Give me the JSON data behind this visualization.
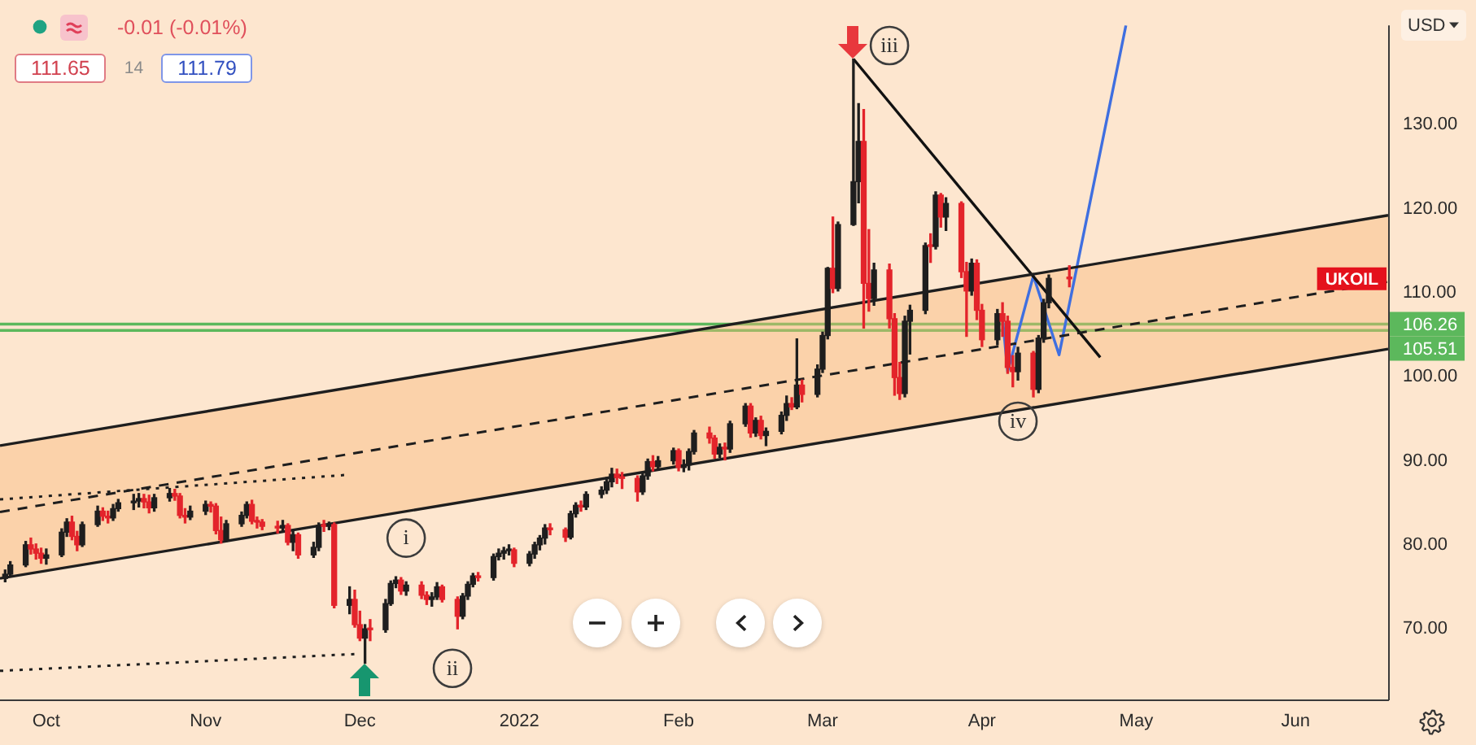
{
  "chart_data": {
    "type": "candlestick",
    "ylabel": "USD",
    "x": [
      "2021-09-23",
      "2021-09-24",
      "2021-09-27",
      "2021-09-28",
      "2021-09-29",
      "2021-09-30",
      "2021-10-01",
      "2021-10-04",
      "2021-10-05",
      "2021-10-06",
      "2021-10-07",
      "2021-10-08",
      "2021-10-11",
      "2021-10-12",
      "2021-10-13",
      "2021-10-14",
      "2021-10-15",
      "2021-10-18",
      "2021-10-19",
      "2021-10-20",
      "2021-10-21",
      "2021-10-22",
      "2021-10-25",
      "2021-10-26",
      "2021-10-27",
      "2021-10-28",
      "2021-10-29",
      "2021-11-01",
      "2021-11-02",
      "2021-11-03",
      "2021-11-04",
      "2021-11-05",
      "2021-11-08",
      "2021-11-09",
      "2021-11-10",
      "2021-11-11",
      "2021-11-12",
      "2021-11-15",
      "2021-11-16",
      "2021-11-17",
      "2021-11-18",
      "2021-11-19",
      "2021-11-22",
      "2021-11-23",
      "2021-11-24",
      "2021-11-25",
      "2021-11-26",
      "2021-11-29",
      "2021-11-30",
      "2021-12-01",
      "2021-12-02",
      "2021-12-03",
      "2021-12-06",
      "2021-12-07",
      "2021-12-08",
      "2021-12-09",
      "2021-12-10",
      "2021-12-13",
      "2021-12-14",
      "2021-12-15",
      "2021-12-16",
      "2021-12-17",
      "2021-12-20",
      "2021-12-21",
      "2021-12-22",
      "2021-12-23",
      "2021-12-24",
      "2021-12-27",
      "2021-12-28",
      "2021-12-29",
      "2021-12-30",
      "2021-12-31",
      "2022-01-03",
      "2022-01-04",
      "2022-01-05",
      "2022-01-06",
      "2022-01-07",
      "2022-01-10",
      "2022-01-11",
      "2022-01-12",
      "2022-01-13",
      "2022-01-14",
      "2022-01-17",
      "2022-01-18",
      "2022-01-19",
      "2022-01-20",
      "2022-01-21",
      "2022-01-24",
      "2022-01-25",
      "2022-01-26",
      "2022-01-27",
      "2022-01-28",
      "2022-01-31",
      "2022-02-01",
      "2022-02-02",
      "2022-02-03",
      "2022-02-04",
      "2022-02-07",
      "2022-02-08",
      "2022-02-09",
      "2022-02-10",
      "2022-02-11",
      "2022-02-14",
      "2022-02-15",
      "2022-02-16",
      "2022-02-17",
      "2022-02-18",
      "2022-02-21",
      "2022-02-22",
      "2022-02-23",
      "2022-02-24",
      "2022-02-25",
      "2022-02-28",
      "2022-03-01",
      "2022-03-02",
      "2022-03-03",
      "2022-03-04",
      "2022-03-07",
      "2022-03-08",
      "2022-03-09",
      "2022-03-10",
      "2022-03-11",
      "2022-03-14",
      "2022-03-15",
      "2022-03-16",
      "2022-03-17",
      "2022-03-18",
      "2022-03-21",
      "2022-03-22",
      "2022-03-23",
      "2022-03-24",
      "2022-03-25",
      "2022-03-28",
      "2022-03-29",
      "2022-03-30",
      "2022-03-31",
      "2022-04-01",
      "2022-04-04",
      "2022-04-05",
      "2022-04-06",
      "2022-04-07",
      "2022-04-08",
      "2022-04-11",
      "2022-04-12",
      "2022-04-13",
      "2022-04-14",
      "2022-04-18"
    ],
    "ohlc": [
      [
        76.0,
        77.0,
        75.6,
        76.5
      ],
      [
        76.5,
        78.0,
        76.2,
        77.6
      ],
      [
        77.6,
        80.4,
        77.4,
        80.0
      ],
      [
        80.0,
        80.8,
        78.9,
        79.5
      ],
      [
        79.5,
        80.1,
        78.3,
        79.0
      ],
      [
        79.0,
        79.6,
        77.8,
        78.4
      ],
      [
        78.4,
        79.5,
        77.7,
        78.8
      ],
      [
        78.8,
        81.9,
        78.6,
        81.5
      ],
      [
        81.5,
        83.1,
        81.0,
        82.7
      ],
      [
        82.7,
        83.4,
        80.6,
        81.0
      ],
      [
        81.0,
        81.6,
        79.3,
        80.0
      ],
      [
        80.0,
        82.7,
        79.8,
        82.4
      ],
      [
        82.4,
        84.6,
        82.2,
        84.0
      ],
      [
        84.0,
        84.4,
        82.9,
        83.4
      ],
      [
        83.4,
        84.0,
        82.6,
        83.2
      ],
      [
        83.2,
        84.8,
        82.9,
        84.3
      ],
      [
        84.3,
        85.4,
        84.0,
        85.0
      ],
      [
        85.0,
        86.0,
        84.2,
        85.2
      ],
      [
        85.2,
        86.1,
        84.5,
        85.5
      ],
      [
        85.5,
        86.0,
        84.4,
        85.1
      ],
      [
        85.1,
        85.9,
        83.8,
        84.4
      ],
      [
        84.4,
        86.0,
        84.0,
        85.6
      ],
      [
        85.6,
        86.7,
        85.2,
        86.1
      ],
      [
        86.1,
        86.6,
        85.3,
        85.8
      ],
      [
        85.8,
        86.1,
        83.2,
        83.5
      ],
      [
        83.5,
        84.3,
        82.6,
        83.3
      ],
      [
        83.3,
        84.6,
        83.0,
        84.0
      ],
      [
        84.0,
        85.2,
        83.6,
        84.8
      ],
      [
        84.8,
        85.1,
        83.9,
        84.6
      ],
      [
        84.6,
        84.9,
        81.3,
        81.7
      ],
      [
        81.7,
        83.3,
        80.2,
        80.6
      ],
      [
        80.6,
        82.9,
        80.4,
        82.5
      ],
      [
        82.5,
        83.9,
        82.2,
        83.5
      ],
      [
        83.5,
        85.1,
        83.2,
        84.8
      ],
      [
        84.8,
        85.3,
        82.5,
        82.8
      ],
      [
        82.8,
        83.3,
        82.0,
        82.7
      ],
      [
        82.7,
        83.0,
        81.8,
        82.2
      ],
      [
        82.2,
        82.8,
        81.4,
        82.0
      ],
      [
        82.0,
        82.9,
        81.6,
        82.3
      ],
      [
        82.3,
        82.5,
        80.0,
        80.3
      ],
      [
        80.3,
        81.6,
        79.3,
        81.2
      ],
      [
        81.2,
        81.4,
        78.4,
        78.8
      ],
      [
        78.8,
        80.3,
        78.5,
        79.7
      ],
      [
        79.7,
        82.6,
        79.3,
        82.3
      ],
      [
        82.3,
        82.9,
        81.6,
        82.2
      ],
      [
        82.2,
        82.7,
        81.8,
        82.4
      ],
      [
        82.4,
        82.6,
        72.5,
        72.8
      ],
      [
        72.8,
        75.0,
        71.8,
        73.5
      ],
      [
        73.5,
        74.6,
        70.2,
        70.5
      ],
      [
        70.5,
        72.1,
        68.6,
        68.9
      ],
      [
        68.9,
        70.5,
        65.9,
        70.0
      ],
      [
        70.0,
        71.1,
        68.6,
        69.9
      ],
      [
        69.9,
        73.5,
        69.6,
        73.0
      ],
      [
        73.0,
        75.7,
        72.8,
        75.4
      ],
      [
        75.4,
        76.2,
        74.9,
        75.8
      ],
      [
        75.8,
        76.1,
        74.1,
        74.5
      ],
      [
        74.5,
        75.6,
        74.0,
        75.2
      ],
      [
        75.2,
        75.6,
        73.6,
        74.0
      ],
      [
        74.0,
        74.4,
        72.9,
        73.5
      ],
      [
        73.5,
        74.3,
        72.7,
        73.8
      ],
      [
        73.8,
        75.5,
        73.5,
        75.0
      ],
      [
        75.0,
        75.2,
        73.2,
        73.5
      ],
      [
        73.5,
        73.8,
        70.0,
        71.5
      ],
      [
        71.5,
        74.2,
        71.2,
        73.9
      ],
      [
        73.9,
        75.6,
        73.5,
        75.3
      ],
      [
        75.3,
        76.6,
        75.0,
        76.3
      ],
      [
        76.3,
        76.7,
        75.7,
        76.1
      ],
      [
        76.1,
        78.9,
        75.8,
        78.6
      ],
      [
        78.6,
        79.5,
        78.2,
        79.0
      ],
      [
        79.0,
        79.7,
        78.3,
        79.3
      ],
      [
        79.3,
        80.0,
        78.8,
        79.4
      ],
      [
        79.4,
        79.6,
        77.4,
        77.8
      ],
      [
        77.8,
        79.2,
        77.5,
        78.9
      ],
      [
        78.9,
        80.3,
        78.4,
        80.0
      ],
      [
        80.0,
        81.1,
        79.4,
        80.8
      ],
      [
        80.8,
        82.4,
        80.1,
        82.0
      ],
      [
        82.0,
        82.5,
        81.2,
        81.8
      ],
      [
        81.8,
        82.0,
        80.4,
        80.9
      ],
      [
        80.9,
        84.0,
        80.7,
        83.7
      ],
      [
        83.7,
        85.0,
        83.3,
        84.7
      ],
      [
        84.7,
        85.2,
        84.0,
        84.5
      ],
      [
        84.5,
        86.3,
        84.2,
        86.0
      ],
      [
        86.0,
        86.9,
        85.6,
        86.5
      ],
      [
        86.5,
        88.0,
        86.1,
        87.5
      ],
      [
        87.5,
        89.1,
        86.9,
        88.4
      ],
      [
        88.4,
        89.0,
        87.3,
        88.0
      ],
      [
        88.0,
        88.6,
        86.7,
        87.9
      ],
      [
        87.9,
        88.2,
        85.2,
        86.3
      ],
      [
        86.3,
        88.5,
        86.0,
        88.2
      ],
      [
        88.2,
        90.2,
        87.8,
        89.9
      ],
      [
        89.9,
        90.6,
        88.8,
        89.3
      ],
      [
        89.3,
        90.5,
        88.9,
        90.0
      ],
      [
        90.0,
        91.5,
        89.6,
        91.2
      ],
      [
        91.2,
        91.4,
        88.8,
        89.2
      ],
      [
        89.2,
        90.1,
        88.7,
        89.5
      ],
      [
        89.5,
        91.4,
        88.9,
        91.1
      ],
      [
        91.1,
        93.6,
        90.8,
        93.3
      ],
      [
        93.3,
        94.0,
        92.1,
        92.7
      ],
      [
        92.7,
        93.0,
        90.3,
        90.8
      ],
      [
        90.8,
        92.0,
        90.4,
        91.6
      ],
      [
        91.6,
        92.1,
        90.1,
        91.4
      ],
      [
        91.4,
        94.7,
        91.0,
        94.4
      ],
      [
        94.4,
        96.8,
        94.1,
        96.5
      ],
      [
        96.5,
        96.8,
        92.8,
        93.3
      ],
      [
        93.3,
        95.1,
        92.9,
        94.8
      ],
      [
        94.8,
        95.3,
        92.6,
        93.0
      ],
      [
        93.0,
        93.9,
        91.8,
        93.5
      ],
      [
        93.5,
        95.8,
        93.2,
        95.4
      ],
      [
        95.4,
        97.7,
        94.8,
        96.8
      ],
      [
        96.8,
        97.5,
        96.1,
        96.4
      ],
      [
        96.4,
        104.5,
        96.2,
        99.0
      ],
      [
        99.0,
        99.6,
        97.0,
        97.9
      ],
      [
        97.9,
        101.4,
        97.6,
        100.9
      ],
      [
        100.9,
        105.3,
        100.5,
        104.9
      ],
      [
        104.9,
        113.0,
        104.5,
        112.9
      ],
      [
        112.9,
        119.0,
        110.0,
        110.5
      ],
      [
        110.5,
        118.4,
        110.2,
        118.1
      ],
      [
        118.1,
        137.8,
        118.0,
        123.2
      ],
      [
        123.2,
        132.5,
        120.7,
        128.0
      ],
      [
        128.0,
        131.8,
        105.8,
        111.1
      ],
      [
        111.1,
        117.5,
        107.8,
        109.3
      ],
      [
        109.3,
        113.5,
        108.5,
        112.7
      ],
      [
        112.7,
        113.4,
        105.8,
        106.9
      ],
      [
        106.9,
        107.5,
        97.8,
        99.9
      ],
      [
        99.9,
        101.7,
        97.3,
        98.0
      ],
      [
        98.0,
        107.2,
        97.6,
        106.6
      ],
      [
        106.6,
        108.5,
        102.7,
        107.9
      ],
      [
        107.9,
        115.9,
        107.5,
        115.6
      ],
      [
        115.6,
        117.0,
        113.6,
        115.5
      ],
      [
        115.5,
        122.0,
        115.2,
        121.6
      ],
      [
        121.6,
        121.8,
        117.8,
        119.0
      ],
      [
        119.0,
        121.3,
        117.4,
        120.6
      ],
      [
        120.6,
        120.8,
        111.8,
        112.5
      ],
      [
        112.5,
        113.6,
        104.8,
        110.2
      ],
      [
        110.2,
        114.0,
        109.7,
        113.5
      ],
      [
        113.5,
        113.9,
        106.8,
        107.9
      ],
      [
        107.9,
        108.6,
        103.6,
        104.4
      ],
      [
        104.4,
        108.0,
        103.8,
        107.5
      ],
      [
        107.5,
        108.8,
        104.8,
        106.6
      ],
      [
        106.6,
        107.2,
        100.4,
        101.1
      ],
      [
        101.1,
        102.5,
        98.8,
        100.6
      ],
      [
        100.6,
        103.5,
        99.6,
        102.8
      ],
      [
        102.8,
        103.0,
        97.6,
        98.5
      ],
      [
        98.5,
        104.9,
        98.1,
        104.6
      ],
      [
        104.6,
        109.2,
        104.1,
        108.8
      ],
      [
        108.8,
        112.1,
        108.2,
        111.7
      ],
      [
        111.7,
        113.2,
        110.7,
        111.65
      ]
    ],
    "colors": [
      "#1e1e1e",
      "#1e1e1e",
      "#1e1e1e",
      "#e3242b",
      "#e3242b",
      "#e3242b",
      "#1e1e1e",
      "#1e1e1e",
      "#1e1e1e",
      "#e3242b",
      "#e3242b",
      "#1e1e1e",
      "#1e1e1e",
      "#e3242b",
      "#e3242b",
      "#1e1e1e",
      "#1e1e1e",
      "#1e1e1e",
      "#1e1e1e",
      "#e3242b",
      "#e3242b",
      "#1e1e1e",
      "#1e1e1e",
      "#e3242b",
      "#e3242b",
      "#e3242b",
      "#1e1e1e",
      "#1e1e1e",
      "#e3242b",
      "#e3242b",
      "#e3242b",
      "#1e1e1e",
      "#1e1e1e",
      "#1e1e1e",
      "#e3242b",
      "#e3242b",
      "#e3242b",
      "#e3242b",
      "#1e1e1e",
      "#e3242b",
      "#1e1e1e",
      "#e3242b",
      "#1e1e1e",
      "#1e1e1e",
      "#e3242b",
      "#1e1e1e",
      "#e3242b",
      "#1e1e1e",
      "#e3242b",
      "#e3242b",
      "#1e1e1e",
      "#e3242b",
      "#1e1e1e",
      "#1e1e1e",
      "#1e1e1e",
      "#e3242b",
      "#1e1e1e",
      "#e3242b",
      "#e3242b",
      "#1e1e1e",
      "#1e1e1e",
      "#e3242b",
      "#e3242b",
      "#1e1e1e",
      "#1e1e1e",
      "#1e1e1e",
      "#e3242b",
      "#1e1e1e",
      "#1e1e1e",
      "#1e1e1e",
      "#1e1e1e",
      "#e3242b",
      "#1e1e1e",
      "#1e1e1e",
      "#1e1e1e",
      "#1e1e1e",
      "#e3242b",
      "#e3242b",
      "#1e1e1e",
      "#1e1e1e",
      "#e3242b",
      "#1e1e1e",
      "#1e1e1e",
      "#1e1e1e",
      "#1e1e1e",
      "#e3242b",
      "#e3242b",
      "#e3242b",
      "#1e1e1e",
      "#1e1e1e",
      "#e3242b",
      "#1e1e1e",
      "#1e1e1e",
      "#e3242b",
      "#1e1e1e",
      "#1e1e1e",
      "#1e1e1e",
      "#e3242b",
      "#e3242b",
      "#1e1e1e",
      "#e3242b",
      "#1e1e1e",
      "#1e1e1e",
      "#e3242b",
      "#1e1e1e",
      "#e3242b",
      "#1e1e1e",
      "#1e1e1e",
      "#1e1e1e",
      "#e3242b",
      "#1e1e1e",
      "#e3242b",
      "#1e1e1e",
      "#1e1e1e",
      "#1e1e1e",
      "#e3242b",
      "#1e1e1e",
      "#1e1e1e",
      "#1e1e1e",
      "#e3242b",
      "#e3242b",
      "#1e1e1e",
      "#e3242b",
      "#e3242b",
      "#e3242b",
      "#1e1e1e",
      "#1e1e1e",
      "#1e1e1e",
      "#e3242b",
      "#1e1e1e",
      "#e3242b",
      "#1e1e1e",
      "#e3242b",
      "#e3242b",
      "#1e1e1e",
      "#e3242b",
      "#e3242b",
      "#1e1e1e",
      "#e3242b",
      "#e3242b",
      "#e3242b",
      "#1e1e1e",
      "#e3242b",
      "#1e1e1e",
      "#1e1e1e",
      "#1e1e1e",
      "#e3242b"
    ],
    "series": [
      {
        "type": "line",
        "color": "#1e1e1e",
        "x": [
          "2021-09-22",
          "2022-06-19"
        ],
        "values": [
          91.8,
          119.2
        ]
      },
      {
        "type": "line",
        "color": "#1e1e1e",
        "x": [
          "2021-09-22",
          "2022-06-19"
        ],
        "values": [
          76.0,
          103.3
        ]
      },
      {
        "type": "line",
        "color": "#1e1e1e",
        "line_style": "dashed",
        "x": [
          "2021-09-22",
          "2022-06-19"
        ],
        "values": [
          83.9,
          111.3
        ],
        "lower": [
          76.0,
          103.3
        ],
        "upper": [
          91.8,
          119.2
        ]
      },
      {
        "type": "line",
        "color": "#1e1e1e",
        "line_style": "dotted",
        "x": [
          "2021-09-22",
          "2021-11-28"
        ],
        "values": [
          85.4,
          88.3
        ]
      },
      {
        "type": "line",
        "color": "#1e1e1e",
        "line_style": "dotted",
        "x": [
          "2021-09-22",
          "2021-11-30"
        ],
        "values": [
          65.0,
          67.0
        ]
      },
      {
        "type": "line",
        "color": "#111111",
        "x": [
          "2022-03-07",
          "2022-04-24"
        ],
        "values": [
          137.8,
          102.3
        ]
      },
      {
        "type": "line",
        "color": "#3f6fe0",
        "x": [
          "2022-04-05",
          "2022-04-06",
          "2022-04-11",
          "2022-04-16",
          "2022-04-29"
        ],
        "values": [
          107.0,
          100.6,
          112.0,
          102.6,
          141.8
        ]
      }
    ],
    "ref_lines": [
      {
        "axis": "y",
        "value": 106.26,
        "label": "106.26",
        "color": "#5cb85c"
      },
      {
        "axis": "y",
        "value": 105.51,
        "label": "105.51",
        "color": "#5cb85c"
      }
    ],
    "annotations": [
      "-0.01 (-0.01%)",
      "111.65",
      "14",
      "111.79",
      {
        "text": "i",
        "x": "2021-12-10",
        "y": 80.8
      },
      {
        "text": "ii",
        "x": "2021-12-19",
        "y": 65.3
      },
      {
        "text": "iii",
        "x": "2022-03-14",
        "y": 139.4
      },
      {
        "text": "iv",
        "x": "2022-04-08",
        "y": 94.7
      },
      {
        "text": "UKOIL",
        "y": 111.65
      }
    ],
    "xlim": [
      "2021-09-22",
      "2022-06-19"
    ],
    "xticks": [
      {
        "value": "2021-10-01",
        "label": "Oct"
      },
      {
        "value": "2021-11-01",
        "label": "Nov"
      },
      {
        "value": "2021-12-01",
        "label": "Dec"
      },
      {
        "value": "2022-01-01",
        "label": "2022"
      },
      {
        "value": "2022-02-01",
        "label": "Feb"
      },
      {
        "value": "2022-03-01",
        "label": "Mar"
      },
      {
        "value": "2022-04-01",
        "label": "Apr"
      },
      {
        "value": "2022-05-01",
        "label": "May"
      },
      {
        "value": "2022-06-01",
        "label": "Jun"
      }
    ],
    "ylim": [
      61.6,
      141.8
    ],
    "yticks": [
      {
        "value": 70,
        "label": "70.00"
      },
      {
        "value": 80,
        "label": "80.00"
      },
      {
        "value": 90,
        "label": "90.00"
      },
      {
        "value": 100,
        "label": "100.00"
      },
      {
        "value": 110,
        "label": "110.00"
      },
      {
        "value": 120,
        "label": "120.00"
      },
      {
        "value": 130,
        "label": "130.00"
      }
    ]
  }
}
